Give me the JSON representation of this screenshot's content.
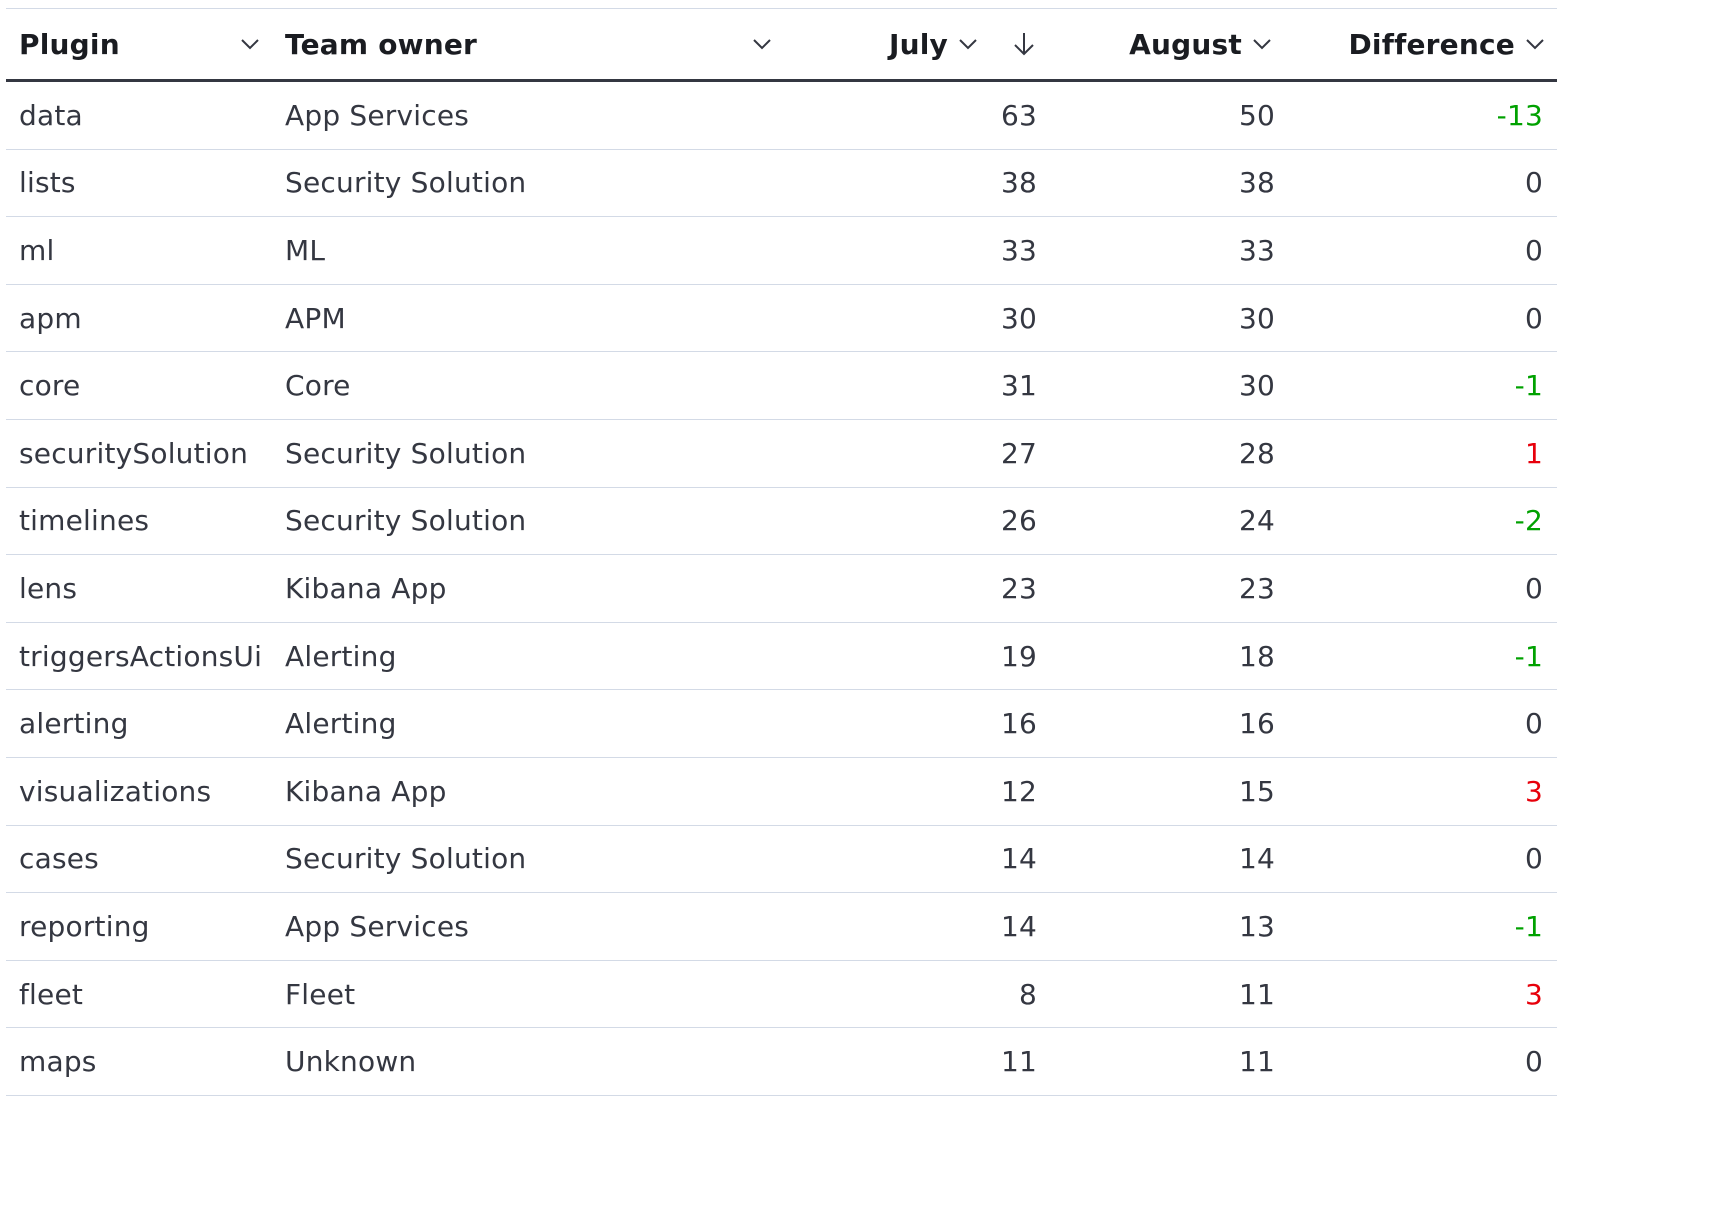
{
  "columns": {
    "plugin": "Plugin",
    "team_owner": "Team owner",
    "july": "July",
    "august": "August",
    "difference": "Difference"
  },
  "sort": {
    "column": "july",
    "direction": "descending",
    "icon": "arrow-down-icon"
  },
  "colors": {
    "negative": "#00a100",
    "positive": "#e7000b",
    "neutral": "#343741"
  },
  "rows": [
    {
      "plugin": "data",
      "team_owner": "App Services",
      "july": "63",
      "august": "50",
      "difference": "-13"
    },
    {
      "plugin": "lists",
      "team_owner": "Security Solution",
      "july": "38",
      "august": "38",
      "difference": "0"
    },
    {
      "plugin": "ml",
      "team_owner": "ML",
      "july": "33",
      "august": "33",
      "difference": "0"
    },
    {
      "plugin": "apm",
      "team_owner": "APM",
      "july": "30",
      "august": "30",
      "difference": "0"
    },
    {
      "plugin": "core",
      "team_owner": "Core",
      "july": "31",
      "august": "30",
      "difference": "-1"
    },
    {
      "plugin": "securitySolution",
      "team_owner": "Security Solution",
      "july": "27",
      "august": "28",
      "difference": "1"
    },
    {
      "plugin": "timelines",
      "team_owner": "Security Solution",
      "july": "26",
      "august": "24",
      "difference": "-2"
    },
    {
      "plugin": "lens",
      "team_owner": "Kibana App",
      "july": "23",
      "august": "23",
      "difference": "0"
    },
    {
      "plugin": "triggersActionsUi",
      "team_owner": "Alerting",
      "july": "19",
      "august": "18",
      "difference": "-1"
    },
    {
      "plugin": "alerting",
      "team_owner": "Alerting",
      "july": "16",
      "august": "16",
      "difference": "0"
    },
    {
      "plugin": "visualizations",
      "team_owner": "Kibana App",
      "july": "12",
      "august": "15",
      "difference": "3"
    },
    {
      "plugin": "cases",
      "team_owner": "Security Solution",
      "july": "14",
      "august": "14",
      "difference": "0"
    },
    {
      "plugin": "reporting",
      "team_owner": "App Services",
      "july": "14",
      "august": "13",
      "difference": "-1"
    },
    {
      "plugin": "fleet",
      "team_owner": "Fleet",
      "july": "8",
      "august": "11",
      "difference": "3"
    },
    {
      "plugin": "maps",
      "team_owner": "Unknown",
      "july": "11",
      "august": "11",
      "difference": "0"
    }
  ]
}
